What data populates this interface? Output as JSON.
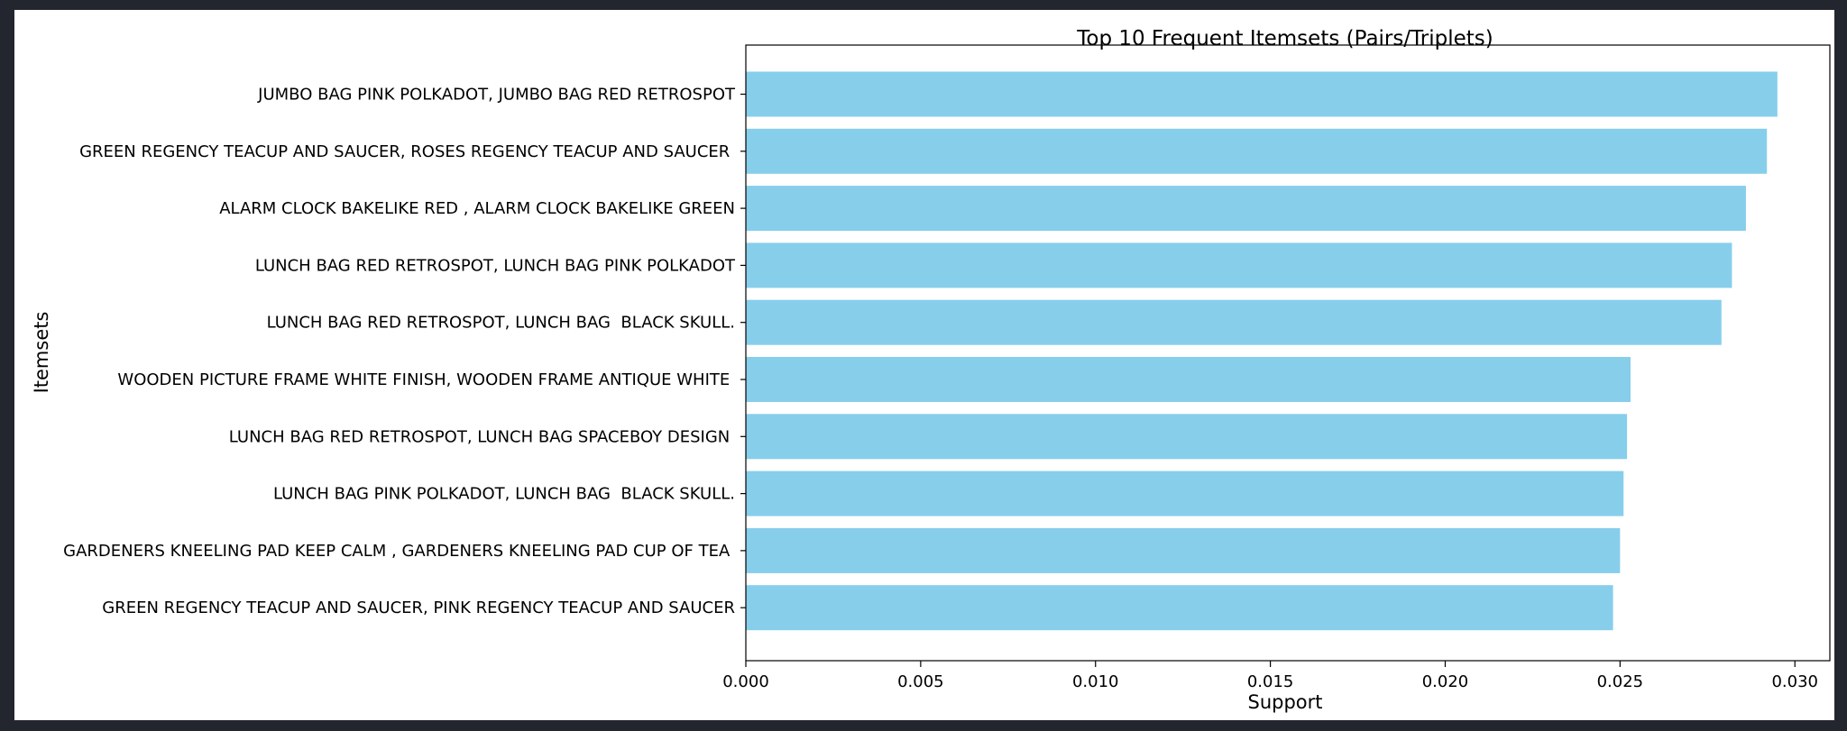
{
  "chart_data": {
    "type": "bar",
    "orientation": "horizontal",
    "title": "Top 10 Frequent Itemsets (Pairs/Triplets)",
    "xlabel": "Support",
    "ylabel": "Itemsets",
    "xlim": [
      0,
      0.031
    ],
    "xticks": [
      "0.000",
      "0.005",
      "0.010",
      "0.015",
      "0.020",
      "0.025",
      "0.030"
    ],
    "xtick_values": [
      0,
      0.005,
      0.01,
      0.015,
      0.02,
      0.025,
      0.03
    ],
    "color": "#87ceeb",
    "grid": false,
    "categories": [
      "JUMBO BAG PINK POLKADOT, JUMBO BAG RED RETROSPOT",
      "GREEN REGENCY TEACUP AND SAUCER, ROSES REGENCY TEACUP AND SAUCER ",
      "ALARM CLOCK BAKELIKE RED , ALARM CLOCK BAKELIKE GREEN",
      "LUNCH BAG RED RETROSPOT, LUNCH BAG PINK POLKADOT",
      "LUNCH BAG RED RETROSPOT, LUNCH BAG  BLACK SKULL.",
      "WOODEN PICTURE FRAME WHITE FINISH, WOODEN FRAME ANTIQUE WHITE ",
      "LUNCH BAG RED RETROSPOT, LUNCH BAG SPACEBOY DESIGN ",
      "LUNCH BAG PINK POLKADOT, LUNCH BAG  BLACK SKULL.",
      "GARDENERS KNEELING PAD KEEP CALM , GARDENERS KNEELING PAD CUP OF TEA ",
      "GREEN REGENCY TEACUP AND SAUCER, PINK REGENCY TEACUP AND SAUCER"
    ],
    "values": [
      0.0295,
      0.0292,
      0.0286,
      0.0282,
      0.0279,
      0.0253,
      0.0252,
      0.0251,
      0.025,
      0.0248
    ]
  }
}
